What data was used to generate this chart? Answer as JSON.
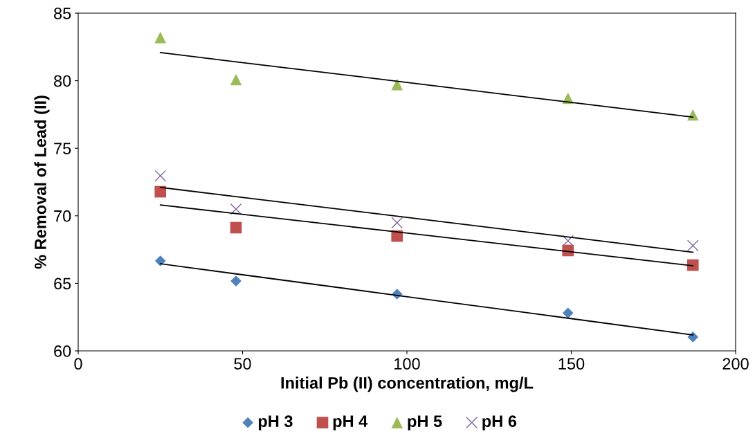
{
  "chart_data": {
    "type": "scatter",
    "xlabel": "Initial Pb (II) concentration, mg/L",
    "ylabel": "% Removal of Lead (II)",
    "xlim": [
      0,
      200
    ],
    "xticks": [
      0,
      50,
      100,
      150,
      200
    ],
    "ylim": [
      60,
      85
    ],
    "yticks": [
      60,
      65,
      70,
      75,
      80,
      85
    ],
    "grid": false,
    "legend": "bottom",
    "x": [
      25,
      48,
      97,
      149,
      187
    ],
    "series": [
      {
        "name": "pH 3",
        "color": "#4f81bd",
        "marker": "diamond",
        "values": [
          66.66,
          65.17,
          64.2,
          62.8,
          61.03
        ]
      },
      {
        "name": "pH 4",
        "color": "#c0504d",
        "marker": "square",
        "values": [
          71.78,
          69.12,
          68.5,
          67.43,
          66.35
        ]
      },
      {
        "name": "pH 5",
        "color": "#9bbb59",
        "marker": "triangle",
        "values": [
          83.2,
          80.08,
          79.72,
          78.7,
          77.47
        ]
      },
      {
        "name": "pH 6",
        "color": "#8064a2",
        "marker": "cross",
        "values": [
          72.96,
          70.5,
          69.48,
          68.15,
          67.79
        ]
      },
      {
        "type": "line",
        "color": "#000000",
        "marker": "none",
        "values": [
          66.45,
          65.7,
          64.11,
          62.42,
          61.18
        ]
      },
      {
        "type": "line",
        "color": "#000000",
        "marker": "none",
        "values": [
          70.8,
          70.16,
          68.8,
          67.36,
          66.3
        ]
      },
      {
        "type": "line",
        "color": "#000000",
        "marker": "none",
        "values": [
          82.08,
          81.4,
          79.96,
          78.42,
          77.3
        ]
      },
      {
        "type": "line",
        "color": "#000000",
        "marker": "none",
        "values": [
          72.1,
          71.42,
          69.97,
          68.43,
          67.3
        ]
      }
    ]
  }
}
